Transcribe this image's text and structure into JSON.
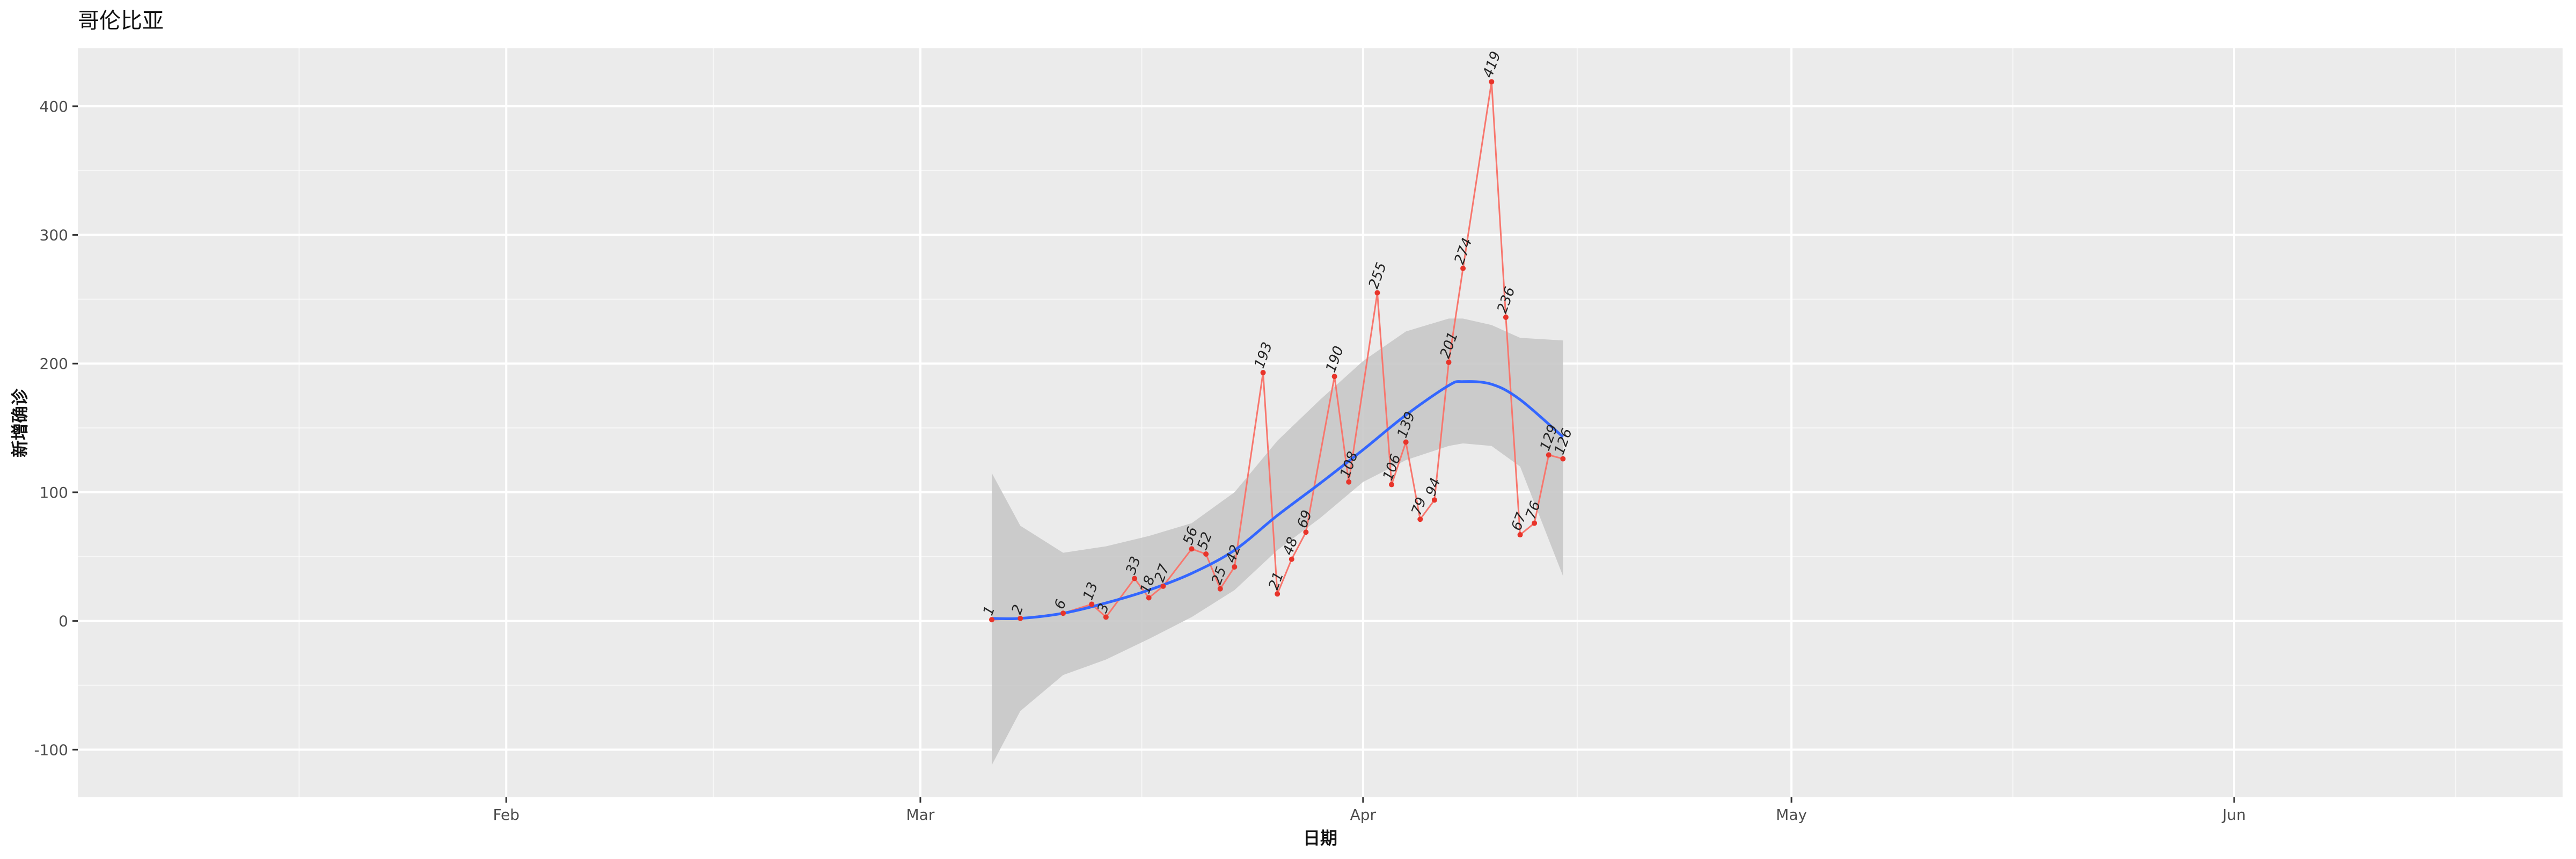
{
  "chart_data": {
    "type": "line",
    "title": "哥伦比亚",
    "xlabel": "日期",
    "ylabel": "新增确诊",
    "x_ticks": [
      "2020-02-01",
      "2020-03-01",
      "2020-04-01",
      "2020-05-01",
      "2020-06-01"
    ],
    "x_tick_labels": [
      "Feb",
      "Mar",
      "Apr",
      "May",
      "Jun"
    ],
    "x_range": [
      "2020-01-02",
      "2020-06-24"
    ],
    "y_ticks": [
      -100,
      0,
      100,
      200,
      300,
      400
    ],
    "ylim": [
      -137,
      445
    ],
    "grid": true,
    "colors": {
      "panel": "#ebebeb",
      "grid_major": "#ffffff",
      "series_line": "#f8766d",
      "point": "#e8342a",
      "smooth": "#3366ff",
      "ribbon": "#c8c8c8"
    },
    "series": [
      {
        "type": "line_points",
        "points": [
          {
            "x": "2020-03-06",
            "y": 1
          },
          {
            "x": "2020-03-08",
            "y": 2
          },
          {
            "x": "2020-03-11",
            "y": 6
          },
          {
            "x": "2020-03-13",
            "y": 13
          },
          {
            "x": "2020-03-14",
            "y": 3
          },
          {
            "x": "2020-03-16",
            "y": 33
          },
          {
            "x": "2020-03-17",
            "y": 18
          },
          {
            "x": "2020-03-18",
            "y": 27
          },
          {
            "x": "2020-03-20",
            "y": 56
          },
          {
            "x": "2020-03-21",
            "y": 52
          },
          {
            "x": "2020-03-22",
            "y": 25
          },
          {
            "x": "2020-03-23",
            "y": 42
          },
          {
            "x": "2020-03-25",
            "y": 193
          },
          {
            "x": "2020-03-26",
            "y": 21
          },
          {
            "x": "2020-03-27",
            "y": 48
          },
          {
            "x": "2020-03-28",
            "y": 69
          },
          {
            "x": "2020-03-30",
            "y": 190
          },
          {
            "x": "2020-03-31",
            "y": 108
          },
          {
            "x": "2020-04-02",
            "y": 255
          },
          {
            "x": "2020-04-03",
            "y": 106
          },
          {
            "x": "2020-04-04",
            "y": 139
          },
          {
            "x": "2020-04-05",
            "y": 79
          },
          {
            "x": "2020-04-06",
            "y": 94
          },
          {
            "x": "2020-04-07",
            "y": 201
          },
          {
            "x": "2020-04-08",
            "y": 274
          },
          {
            "x": "2020-04-10",
            "y": 419
          },
          {
            "x": "2020-04-11",
            "y": 236
          },
          {
            "x": "2020-04-12",
            "y": 67
          },
          {
            "x": "2020-04-13",
            "y": 76
          },
          {
            "x": "2020-04-14",
            "y": 129
          },
          {
            "x": "2020-04-15",
            "y": 126
          }
        ]
      },
      {
        "type": "smooth",
        "x": [
          "2020-03-06",
          "2020-03-08",
          "2020-03-11",
          "2020-03-14",
          "2020-03-17",
          "2020-03-20",
          "2020-03-23",
          "2020-03-26",
          "2020-03-29",
          "2020-04-01",
          "2020-04-04",
          "2020-04-07",
          "2020-04-08",
          "2020-04-10",
          "2020-04-12",
          "2020-04-15"
        ],
        "fit": [
          2,
          2,
          6,
          14,
          24,
          37,
          55,
          82,
          107,
          133,
          160,
          183,
          186,
          184,
          172,
          143
        ],
        "lower": [
          -112,
          -70,
          -42,
          -30,
          -14,
          3,
          24,
          55,
          80,
          108,
          125,
          136,
          138,
          136,
          120,
          35
        ],
        "upper": [
          115,
          74,
          53,
          58,
          66,
          76,
          100,
          140,
          172,
          202,
          225,
          235,
          235,
          230,
          220,
          218
        ]
      }
    ]
  }
}
